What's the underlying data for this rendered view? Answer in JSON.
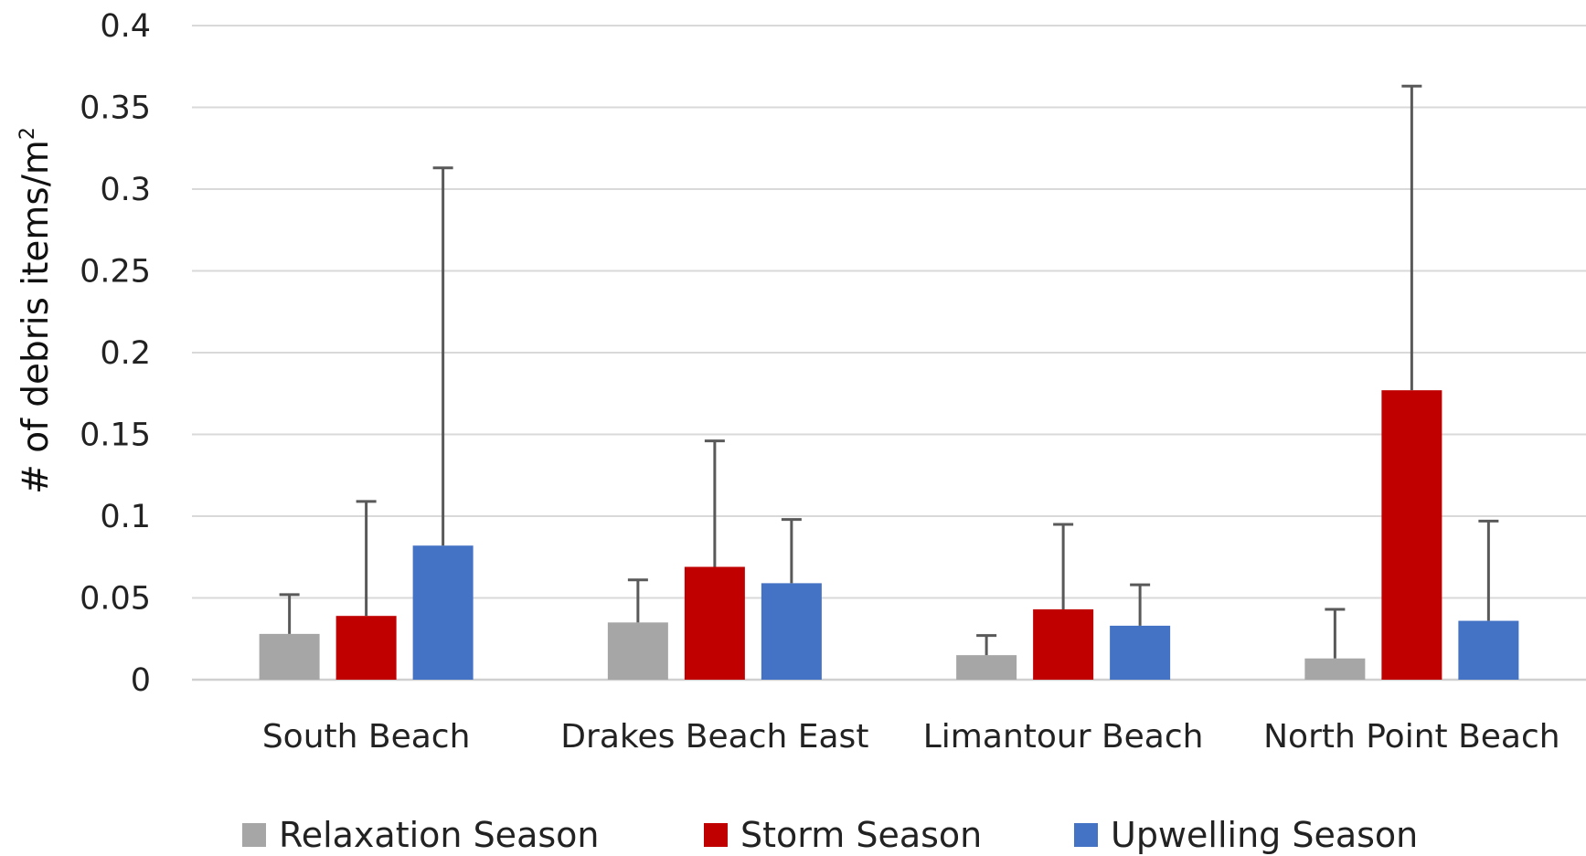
{
  "chart_data": {
    "type": "bar",
    "title": "",
    "ylabel": "# of debris items/m",
    "ylabel_superscript": "2",
    "ylim": [
      0,
      0.4
    ],
    "yticks": [
      {
        "value": 0,
        "label": "0"
      },
      {
        "value": 0.05,
        "label": "0.05"
      },
      {
        "value": 0.1,
        "label": "0.1"
      },
      {
        "value": 0.15,
        "label": "0.15"
      },
      {
        "value": 0.2,
        "label": "0.2"
      },
      {
        "value": 0.25,
        "label": "0.25"
      },
      {
        "value": 0.3,
        "label": "0.3"
      },
      {
        "value": 0.35,
        "label": "0.35"
      },
      {
        "value": 0.4,
        "label": "0.4"
      }
    ],
    "grid": true,
    "legend_position": "bottom",
    "categories": [
      "South Beach",
      "Drakes Beach East",
      "Limantour Beach",
      "North Point Beach"
    ],
    "series": [
      {
        "name": "Relaxation Season",
        "color": "#a6a6a6",
        "values": [
          0.028,
          0.035,
          0.015,
          0.013
        ],
        "error_upper": [
          0.052,
          0.061,
          0.027,
          0.043
        ]
      },
      {
        "name": "Storm Season",
        "color": "#c00000",
        "values": [
          0.039,
          0.069,
          0.043,
          0.177
        ],
        "error_upper": [
          0.109,
          0.146,
          0.095,
          0.363
        ]
      },
      {
        "name": "Upwelling Season",
        "color": "#4472c4",
        "values": [
          0.082,
          0.059,
          0.033,
          0.036
        ],
        "error_upper": [
          0.313,
          0.098,
          0.058,
          0.097
        ]
      }
    ]
  }
}
